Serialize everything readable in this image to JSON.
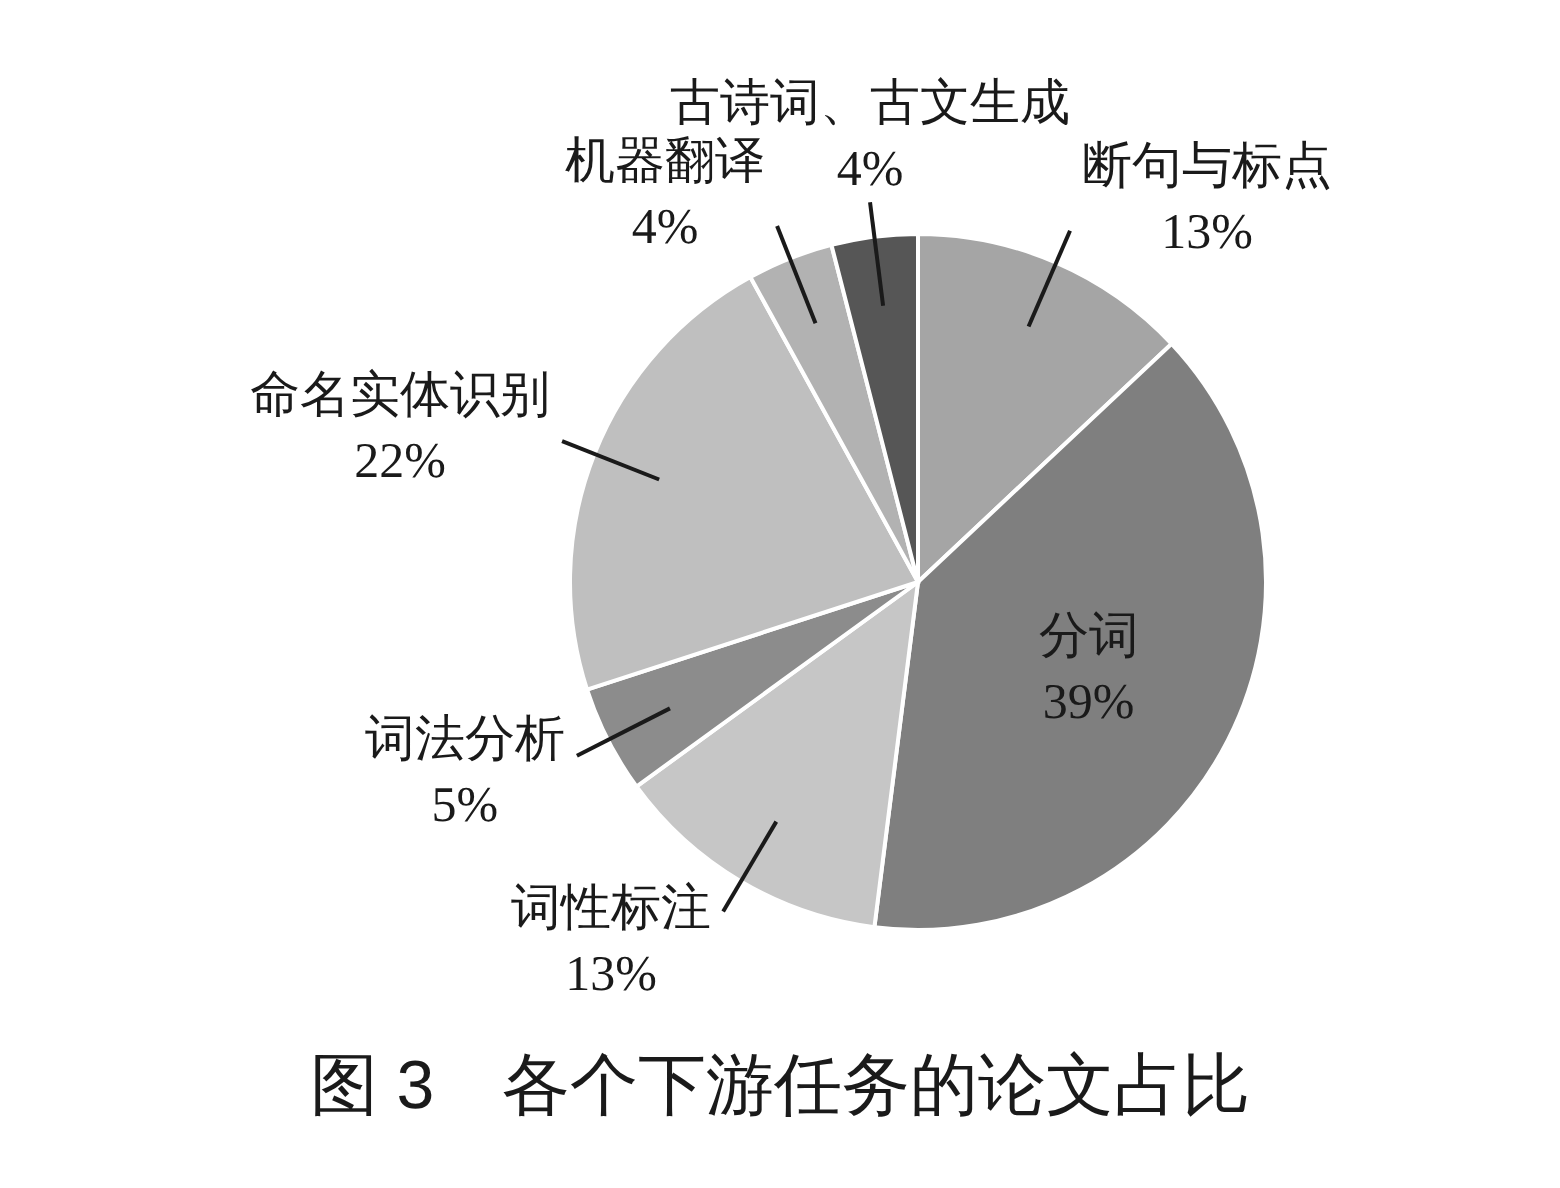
{
  "chart_data": {
    "type": "pie",
    "title": "图 3　各个下游任务的论文占比",
    "categories": [
      "断句与标点",
      "分词",
      "词性标注",
      "词法分析",
      "命名实体识别",
      "机器翻译",
      "古诗词、古文生成"
    ],
    "values": [
      13,
      39,
      13,
      5,
      22,
      4,
      4
    ],
    "value_labels": [
      "13%",
      "39%",
      "13%",
      "5%",
      "22%",
      "4%",
      "4%"
    ],
    "colors": [
      "#a5a5a5",
      "#7f7f7f",
      "#c6c6c6",
      "#8c8c8c",
      "#bfbfbf",
      "#b2b2b2",
      "#565656"
    ]
  }
}
